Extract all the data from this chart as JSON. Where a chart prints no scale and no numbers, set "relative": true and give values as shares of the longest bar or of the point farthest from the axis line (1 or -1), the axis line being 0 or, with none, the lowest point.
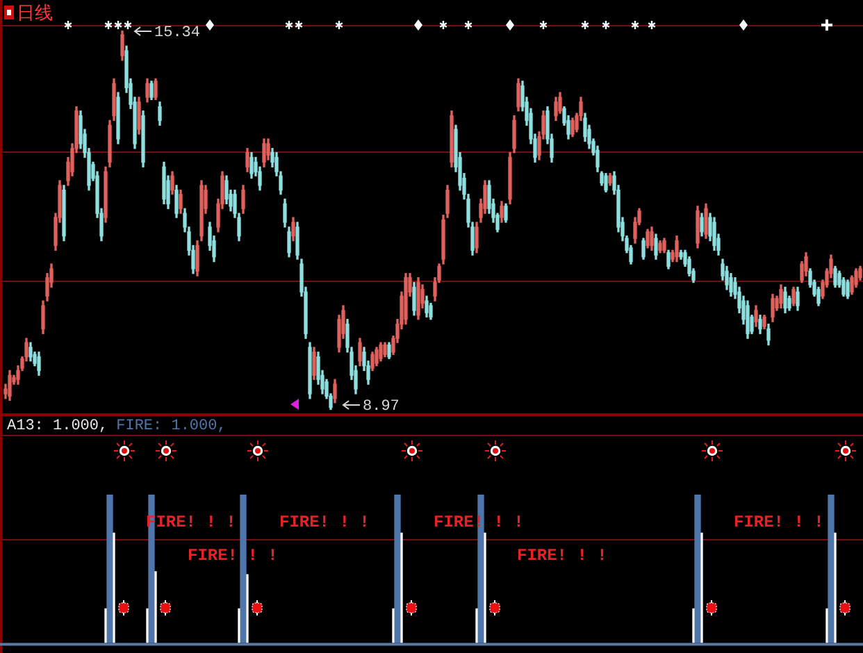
{
  "chart_data": [
    {
      "type": "candlestick",
      "title": "日线",
      "categories": [
        null,
        null,
        null,
        null,
        null,
        null,
        null,
        null,
        null,
        null,
        null,
        null,
        null,
        null,
        null,
        null,
        null,
        null,
        null,
        null,
        null,
        null,
        null,
        null,
        null,
        null,
        null,
        null,
        null,
        null,
        null,
        null,
        null,
        null,
        null,
        null,
        null,
        null,
        null,
        null,
        null,
        null,
        null,
        null,
        null,
        null,
        null,
        null,
        null,
        null,
        null,
        null,
        null,
        null,
        null,
        null,
        null,
        null,
        null,
        null,
        null,
        null,
        null,
        null,
        null,
        null,
        null,
        null,
        null,
        null,
        null,
        null,
        null,
        null,
        null,
        null,
        null,
        null,
        null,
        null,
        null,
        null,
        null,
        null,
        null,
        null,
        null,
        null,
        null,
        null,
        null,
        null,
        null,
        null,
        null,
        null,
        null,
        null,
        null,
        null,
        null,
        null,
        null,
        null,
        null,
        null,
        null,
        null,
        null,
        null,
        null,
        null,
        null,
        null,
        null,
        null,
        null,
        null,
        null,
        null,
        null,
        null,
        null,
        null,
        null,
        null,
        null,
        null,
        null,
        null,
        null,
        null,
        null,
        null,
        null,
        null,
        null,
        null,
        null,
        null,
        null,
        null,
        null,
        null,
        null,
        null,
        null,
        null,
        null,
        null,
        null,
        null,
        null,
        null,
        null,
        null,
        null,
        null,
        null,
        null,
        null,
        null,
        null,
        null,
        null,
        null,
        null,
        null,
        null,
        null,
        null,
        null,
        null,
        null,
        null,
        null,
        null,
        null,
        null,
        null,
        null,
        null,
        null,
        null,
        null,
        null,
        null,
        null,
        null,
        null,
        null,
        null,
        null,
        null,
        null,
        null,
        null,
        null,
        null,
        null,
        null,
        null,
        null,
        null,
        null,
        null
      ],
      "ohlc": [
        [
          9.24,
          9.4,
          9.16,
          9.32
        ],
        [
          9.2,
          9.63,
          9.13,
          9.55
        ],
        [
          9.44,
          9.55,
          9.4,
          9.51
        ],
        [
          9.48,
          9.71,
          9.4,
          9.63
        ],
        [
          9.67,
          9.86,
          9.63,
          9.83
        ],
        [
          9.86,
          10.17,
          9.79,
          10.1
        ],
        [
          10.02,
          10.1,
          9.79,
          9.86
        ],
        [
          9.9,
          9.94,
          9.71,
          9.75
        ],
        [
          9.86,
          9.94,
          9.55,
          9.63
        ],
        [
          10.33,
          10.8,
          10.25,
          10.72
        ],
        [
          10.88,
          11.26,
          10.8,
          11.19
        ],
        [
          11.11,
          11.42,
          11.03,
          11.34
        ],
        [
          11.73,
          12.27,
          11.65,
          12.2
        ],
        [
          12.2,
          12.82,
          12.12,
          12.74
        ],
        [
          12.66,
          12.74,
          11.81,
          11.89
        ],
        [
          12.82,
          13.21,
          12.74,
          13.13
        ],
        [
          12.97,
          13.44,
          12.9,
          13.36
        ],
        [
          13.36,
          14.06,
          13.29,
          13.99
        ],
        [
          13.91,
          13.99,
          13.36,
          13.44
        ],
        [
          13.6,
          13.68,
          13.21,
          13.29
        ],
        [
          13.29,
          13.36,
          12.66,
          12.74
        ],
        [
          13.09,
          13.13,
          12.82,
          12.86
        ],
        [
          12.9,
          12.97,
          12.2,
          12.27
        ],
        [
          12.27,
          12.35,
          11.81,
          11.89
        ],
        [
          12.2,
          13.05,
          12.12,
          12.97
        ],
        [
          13.13,
          13.83,
          13.05,
          13.75
        ],
        [
          13.91,
          14.53,
          13.83,
          14.45
        ],
        [
          14.22,
          14.3,
          13.44,
          13.52
        ],
        [
          14.92,
          15.34,
          14.84,
          15.27
        ],
        [
          15.0,
          15.08,
          14.3,
          14.38
        ],
        [
          14.45,
          14.53,
          14.03,
          14.1
        ],
        [
          14.14,
          14.22,
          13.36,
          13.44
        ],
        [
          13.68,
          14.22,
          13.6,
          14.14
        ],
        [
          13.91,
          13.99,
          13.05,
          13.13
        ],
        [
          14.22,
          14.53,
          14.14,
          14.45
        ],
        [
          14.45,
          14.49,
          14.18,
          14.22
        ],
        [
          14.22,
          14.53,
          14.18,
          14.49
        ],
        [
          14.06,
          14.14,
          13.75,
          13.83
        ],
        [
          13.05,
          13.13,
          12.43,
          12.51
        ],
        [
          12.82,
          12.9,
          12.35,
          12.43
        ],
        [
          12.66,
          12.97,
          12.59,
          12.9
        ],
        [
          12.66,
          12.74,
          12.2,
          12.27
        ],
        [
          12.35,
          12.66,
          12.27,
          12.59
        ],
        [
          12.27,
          12.35,
          11.96,
          12.04
        ],
        [
          11.96,
          12.04,
          11.57,
          11.65
        ],
        [
          11.65,
          11.73,
          11.26,
          11.34
        ],
        [
          11.3,
          11.81,
          11.22,
          11.73
        ],
        [
          11.89,
          12.82,
          11.81,
          12.74
        ],
        [
          12.35,
          12.74,
          12.27,
          12.66
        ],
        [
          12.04,
          12.12,
          11.65,
          11.73
        ],
        [
          11.81,
          11.89,
          11.46,
          11.54
        ],
        [
          12.04,
          12.51,
          11.96,
          12.43
        ],
        [
          12.43,
          12.97,
          12.35,
          12.9
        ],
        [
          12.82,
          12.9,
          12.43,
          12.51
        ],
        [
          12.59,
          12.66,
          12.31,
          12.39
        ],
        [
          12.59,
          12.66,
          12.2,
          12.27
        ],
        [
          12.2,
          12.27,
          11.81,
          11.89
        ],
        [
          12.35,
          12.74,
          12.27,
          12.66
        ],
        [
          13.05,
          13.36,
          12.97,
          13.29
        ],
        [
          13.21,
          13.29,
          12.86,
          12.94
        ],
        [
          13.13,
          13.21,
          12.9,
          12.97
        ],
        [
          12.97,
          13.05,
          12.66,
          12.74
        ],
        [
          13.13,
          13.52,
          13.05,
          13.44
        ],
        [
          13.25,
          13.52,
          13.17,
          13.44
        ],
        [
          13.29,
          13.36,
          13.05,
          13.13
        ],
        [
          13.21,
          13.29,
          12.9,
          12.97
        ],
        [
          12.9,
          12.97,
          12.59,
          12.66
        ],
        [
          12.43,
          12.51,
          12.04,
          12.12
        ],
        [
          11.96,
          12.04,
          11.54,
          11.61
        ],
        [
          11.89,
          12.2,
          11.81,
          12.12
        ],
        [
          12.04,
          12.12,
          11.5,
          11.57
        ],
        [
          11.42,
          11.5,
          10.88,
          10.95
        ],
        [
          10.95,
          11.03,
          10.17,
          10.25
        ],
        [
          10.02,
          10.1,
          9.16,
          9.24
        ],
        [
          9.55,
          10.02,
          9.48,
          9.94
        ],
        [
          9.86,
          9.94,
          9.4,
          9.48
        ],
        [
          9.55,
          9.63,
          9.24,
          9.32
        ],
        [
          9.44,
          9.48,
          9.16,
          9.2
        ],
        [
          9.2,
          9.24,
          8.97,
          9.01
        ],
        [
          9.16,
          9.48,
          9.09,
          9.4
        ],
        [
          10.02,
          10.56,
          9.94,
          10.49
        ],
        [
          10.25,
          10.72,
          10.17,
          10.64
        ],
        [
          10.41,
          10.49,
          9.94,
          10.02
        ],
        [
          9.94,
          10.02,
          9.48,
          9.55
        ],
        [
          9.63,
          9.71,
          9.24,
          9.32
        ],
        [
          9.79,
          10.17,
          9.71,
          10.1
        ],
        [
          9.94,
          10.02,
          9.63,
          9.71
        ],
        [
          9.71,
          9.79,
          9.4,
          9.48
        ],
        [
          9.67,
          9.94,
          9.63,
          9.9
        ],
        [
          9.75,
          10.02,
          9.71,
          9.98
        ],
        [
          9.83,
          10.1,
          9.79,
          10.06
        ],
        [
          9.9,
          10.1,
          9.86,
          10.06
        ],
        [
          10.06,
          10.1,
          9.83,
          9.86
        ],
        [
          9.94,
          10.21,
          9.9,
          10.17
        ],
        [
          10.17,
          10.49,
          10.1,
          10.41
        ],
        [
          10.41,
          10.95,
          10.33,
          10.88
        ],
        [
          10.49,
          11.26,
          10.41,
          11.19
        ],
        [
          10.95,
          11.26,
          10.88,
          11.19
        ],
        [
          11.03,
          11.11,
          10.56,
          10.64
        ],
        [
          10.56,
          11.19,
          10.49,
          11.11
        ],
        [
          10.76,
          11.07,
          10.68,
          10.99
        ],
        [
          10.8,
          10.88,
          10.53,
          10.6
        ],
        [
          10.72,
          10.76,
          10.49,
          10.53
        ],
        [
          10.88,
          11.19,
          10.8,
          11.11
        ],
        [
          11.15,
          11.42,
          11.11,
          11.38
        ],
        [
          11.5,
          12.24,
          11.42,
          12.16
        ],
        [
          12.27,
          12.74,
          12.2,
          12.66
        ],
        [
          13.13,
          13.99,
          13.05,
          13.91
        ],
        [
          13.68,
          13.75,
          12.97,
          13.05
        ],
        [
          13.21,
          13.29,
          12.66,
          12.74
        ],
        [
          12.86,
          12.94,
          12.51,
          12.59
        ],
        [
          12.51,
          12.59,
          12.04,
          12.12
        ],
        [
          12.04,
          12.12,
          11.57,
          11.65
        ],
        [
          11.69,
          12.12,
          11.61,
          12.04
        ],
        [
          12.2,
          12.51,
          12.12,
          12.43
        ],
        [
          12.35,
          12.82,
          12.27,
          12.74
        ],
        [
          12.74,
          12.82,
          12.27,
          12.35
        ],
        [
          12.43,
          12.51,
          12.12,
          12.2
        ],
        [
          12.24,
          12.27,
          11.96,
          12.0
        ],
        [
          12.2,
          12.47,
          12.12,
          12.39
        ],
        [
          12.39,
          12.43,
          12.12,
          12.16
        ],
        [
          12.51,
          13.29,
          12.43,
          13.21
        ],
        [
          13.36,
          13.91,
          13.29,
          13.83
        ],
        [
          14.06,
          14.53,
          13.99,
          14.45
        ],
        [
          14.41,
          14.49,
          13.99,
          14.06
        ],
        [
          14.14,
          14.22,
          13.75,
          13.83
        ],
        [
          13.95,
          14.03,
          13.44,
          13.52
        ],
        [
          13.52,
          13.6,
          13.13,
          13.21
        ],
        [
          13.25,
          13.64,
          13.17,
          13.56
        ],
        [
          13.6,
          13.99,
          13.52,
          13.91
        ],
        [
          13.99,
          14.06,
          13.44,
          13.52
        ],
        [
          13.52,
          13.6,
          13.13,
          13.21
        ],
        [
          13.91,
          14.22,
          13.83,
          14.14
        ],
        [
          13.99,
          14.3,
          13.95,
          14.22
        ],
        [
          14.03,
          14.06,
          13.75,
          13.79
        ],
        [
          13.83,
          13.91,
          13.52,
          13.6
        ],
        [
          13.6,
          13.87,
          13.56,
          13.83
        ],
        [
          13.68,
          13.95,
          13.64,
          13.91
        ],
        [
          13.91,
          14.22,
          13.83,
          14.14
        ],
        [
          13.87,
          13.95,
          13.48,
          13.56
        ],
        [
          13.68,
          13.75,
          13.36,
          13.44
        ],
        [
          13.48,
          13.52,
          13.25,
          13.29
        ],
        [
          13.33,
          13.4,
          12.97,
          13.05
        ],
        [
          12.94,
          12.97,
          12.74,
          12.78
        ],
        [
          12.9,
          12.94,
          12.63,
          12.66
        ],
        [
          12.78,
          12.94,
          12.74,
          12.9
        ],
        [
          12.9,
          12.97,
          12.59,
          12.66
        ],
        [
          12.66,
          12.74,
          11.96,
          12.04
        ],
        [
          12.12,
          12.2,
          11.81,
          11.89
        ],
        [
          11.85,
          11.89,
          11.61,
          11.65
        ],
        [
          11.69,
          11.73,
          11.42,
          11.46
        ],
        [
          11.85,
          12.2,
          11.77,
          12.12
        ],
        [
          12.12,
          12.35,
          12.08,
          12.31
        ],
        [
          11.81,
          11.85,
          11.5,
          11.54
        ],
        [
          11.73,
          12.0,
          11.69,
          11.96
        ],
        [
          11.73,
          12.04,
          11.65,
          11.96
        ],
        [
          11.85,
          11.92,
          11.5,
          11.57
        ],
        [
          11.65,
          11.81,
          11.61,
          11.77
        ],
        [
          11.65,
          11.85,
          11.61,
          11.81
        ],
        [
          11.61,
          11.65,
          11.34,
          11.38
        ],
        [
          11.5,
          11.65,
          11.46,
          11.61
        ],
        [
          11.54,
          11.89,
          11.46,
          11.81
        ],
        [
          11.61,
          11.65,
          11.5,
          11.54
        ],
        [
          11.61,
          11.65,
          11.38,
          11.42
        ],
        [
          11.5,
          11.54,
          11.22,
          11.26
        ],
        [
          11.3,
          11.34,
          11.11,
          11.15
        ],
        [
          11.77,
          12.39,
          11.69,
          12.31
        ],
        [
          12.2,
          12.27,
          11.89,
          11.96
        ],
        [
          11.92,
          12.43,
          11.85,
          12.35
        ],
        [
          12.2,
          12.27,
          11.81,
          11.89
        ],
        [
          12.12,
          12.2,
          11.65,
          11.73
        ],
        [
          11.85,
          11.92,
          11.57,
          11.65
        ],
        [
          11.42,
          11.5,
          11.15,
          11.22
        ],
        [
          11.3,
          11.38,
          10.99,
          11.07
        ],
        [
          11.19,
          11.26,
          10.88,
          10.95
        ],
        [
          11.11,
          11.19,
          10.84,
          10.91
        ],
        [
          10.95,
          11.03,
          10.6,
          10.68
        ],
        [
          10.8,
          10.88,
          10.41,
          10.49
        ],
        [
          10.72,
          10.8,
          10.17,
          10.25
        ],
        [
          10.53,
          10.56,
          10.25,
          10.29
        ],
        [
          10.45,
          10.72,
          10.37,
          10.64
        ],
        [
          10.49,
          10.56,
          10.25,
          10.33
        ],
        [
          10.37,
          10.56,
          10.33,
          10.53
        ],
        [
          10.33,
          10.41,
          10.06,
          10.14
        ],
        [
          10.53,
          10.91,
          10.45,
          10.84
        ],
        [
          10.68,
          10.88,
          10.64,
          10.84
        ],
        [
          10.76,
          11.07,
          10.68,
          10.99
        ],
        [
          10.95,
          11.03,
          10.6,
          10.68
        ],
        [
          10.84,
          10.88,
          10.64,
          10.68
        ],
        [
          10.76,
          11.03,
          10.72,
          10.99
        ],
        [
          10.95,
          11.03,
          10.64,
          10.72
        ],
        [
          11.15,
          11.46,
          11.11,
          11.42
        ],
        [
          11.3,
          11.61,
          11.22,
          11.54
        ],
        [
          11.3,
          11.34,
          11.03,
          11.07
        ],
        [
          11.11,
          11.15,
          10.88,
          10.91
        ],
        [
          10.99,
          11.03,
          10.72,
          10.76
        ],
        [
          10.88,
          11.15,
          10.84,
          11.11
        ],
        [
          11.07,
          11.34,
          11.03,
          11.3
        ],
        [
          11.26,
          11.57,
          11.19,
          11.5
        ],
        [
          11.34,
          11.38,
          11.03,
          11.07
        ],
        [
          11.26,
          11.3,
          11.03,
          11.07
        ],
        [
          11.15,
          11.19,
          10.88,
          10.91
        ],
        [
          11.11,
          11.15,
          10.84,
          10.88
        ],
        [
          10.95,
          11.22,
          10.91,
          11.19
        ],
        [
          11.07,
          11.34,
          11.03,
          11.3
        ],
        [
          11.19,
          11.38,
          11.15,
          11.34
        ]
      ],
      "colors": [
        "#e0605c",
        "#e0605c",
        "#e0605c",
        "#e0605c",
        "#e0605c",
        "#e0605c",
        "#8ee0e0",
        "#8ee0e0",
        "#8ee0e0",
        "#e0605c",
        "#e0605c",
        "#e0605c",
        "#e0605c",
        "#e0605c",
        "#8ee0e0",
        "#e0605c",
        "#e0605c",
        "#e0605c",
        "#8ee0e0",
        "#8ee0e0",
        "#8ee0e0",
        "#8ee0e0",
        "#8ee0e0",
        "#8ee0e0",
        "#e0605c",
        "#e0605c",
        "#e0605c",
        "#8ee0e0",
        "#e0605c",
        "#8ee0e0",
        "#8ee0e0",
        "#8ee0e0",
        "#e0605c",
        "#8ee0e0",
        "#e0605c",
        "#8ee0e0",
        "#e0605c",
        "#8ee0e0",
        "#8ee0e0",
        "#8ee0e0",
        "#e0605c",
        "#8ee0e0",
        "#e0605c",
        "#8ee0e0",
        "#8ee0e0",
        "#8ee0e0",
        "#e0605c",
        "#e0605c",
        "#e0605c",
        "#8ee0e0",
        "#8ee0e0",
        "#e0605c",
        "#e0605c",
        "#8ee0e0",
        "#8ee0e0",
        "#8ee0e0",
        "#8ee0e0",
        "#e0605c",
        "#e0605c",
        "#8ee0e0",
        "#8ee0e0",
        "#8ee0e0",
        "#e0605c",
        "#e0605c",
        "#8ee0e0",
        "#8ee0e0",
        "#8ee0e0",
        "#8ee0e0",
        "#8ee0e0",
        "#e0605c",
        "#8ee0e0",
        "#8ee0e0",
        "#8ee0e0",
        "#8ee0e0",
        "#e0605c",
        "#8ee0e0",
        "#8ee0e0",
        "#8ee0e0",
        "#8ee0e0",
        "#e0605c",
        "#e0605c",
        "#e0605c",
        "#8ee0e0",
        "#8ee0e0",
        "#8ee0e0",
        "#e0605c",
        "#8ee0e0",
        "#8ee0e0",
        "#e0605c",
        "#e0605c",
        "#e0605c",
        "#e0605c",
        "#8ee0e0",
        "#e0605c",
        "#e0605c",
        "#e0605c",
        "#e0605c",
        "#e0605c",
        "#8ee0e0",
        "#e0605c",
        "#e0605c",
        "#8ee0e0",
        "#8ee0e0",
        "#e0605c",
        "#e0605c",
        "#e0605c",
        "#e0605c",
        "#e0605c",
        "#8ee0e0",
        "#8ee0e0",
        "#8ee0e0",
        "#8ee0e0",
        "#8ee0e0",
        "#e0605c",
        "#e0605c",
        "#e0605c",
        "#8ee0e0",
        "#8ee0e0",
        "#8ee0e0",
        "#e0605c",
        "#8ee0e0",
        "#e0605c",
        "#e0605c",
        "#e0605c",
        "#8ee0e0",
        "#8ee0e0",
        "#8ee0e0",
        "#8ee0e0",
        "#e0605c",
        "#e0605c",
        "#8ee0e0",
        "#8ee0e0",
        "#e0605c",
        "#e0605c",
        "#8ee0e0",
        "#8ee0e0",
        "#e0605c",
        "#e0605c",
        "#e0605c",
        "#8ee0e0",
        "#8ee0e0",
        "#8ee0e0",
        "#8ee0e0",
        "#8ee0e0",
        "#8ee0e0",
        "#e0605c",
        "#8ee0e0",
        "#8ee0e0",
        "#8ee0e0",
        "#8ee0e0",
        "#8ee0e0",
        "#e0605c",
        "#e0605c",
        "#8ee0e0",
        "#e0605c",
        "#e0605c",
        "#8ee0e0",
        "#e0605c",
        "#e0605c",
        "#8ee0e0",
        "#e0605c",
        "#e0605c",
        "#8ee0e0",
        "#8ee0e0",
        "#8ee0e0",
        "#8ee0e0",
        "#e0605c",
        "#8ee0e0",
        "#e0605c",
        "#8ee0e0",
        "#8ee0e0",
        "#8ee0e0",
        "#8ee0e0",
        "#8ee0e0",
        "#8ee0e0",
        "#8ee0e0",
        "#8ee0e0",
        "#8ee0e0",
        "#8ee0e0",
        "#8ee0e0",
        "#e0605c",
        "#8ee0e0",
        "#e0605c",
        "#8ee0e0",
        "#e0605c",
        "#e0605c",
        "#e0605c",
        "#8ee0e0",
        "#8ee0e0",
        "#e0605c",
        "#8ee0e0",
        "#e0605c",
        "#e0605c",
        "#8ee0e0",
        "#8ee0e0",
        "#8ee0e0",
        "#e0605c",
        "#e0605c",
        "#e0605c",
        "#8ee0e0",
        "#8ee0e0",
        "#8ee0e0",
        "#8ee0e0",
        "#e0605c",
        "#e0605c",
        "#e0605c"
      ],
      "yticks": [
        {
          "value": 13.3,
          "label": null
        },
        {
          "value": 11.15,
          "label": null
        }
      ],
      "annotations": [
        "15.34",
        "8.97"
      ],
      "grid": "y",
      "tick_labels": false
    },
    {
      "type": "bar",
      "relative": true,
      "categories": [
        null,
        null,
        null,
        null,
        null,
        null,
        null,
        null,
        null,
        null,
        null,
        null,
        null,
        null,
        null,
        null,
        null,
        null,
        null,
        null,
        null,
        null,
        null,
        null,
        null,
        null,
        null,
        null,
        null,
        null,
        null,
        null,
        null,
        null,
        null,
        null,
        null,
        null,
        null,
        null,
        null,
        null,
        null,
        null,
        null,
        null,
        null,
        null,
        null,
        null,
        null,
        null,
        null,
        null,
        null,
        null,
        null,
        null,
        null,
        null,
        null,
        null,
        null,
        null,
        null,
        null,
        null,
        null,
        null,
        null,
        null,
        null,
        null,
        null,
        null,
        null,
        null,
        null,
        null,
        null,
        null,
        null,
        null,
        null,
        null,
        null,
        null,
        null,
        null,
        null,
        null,
        null,
        null,
        null,
        null,
        null,
        null,
        null,
        null,
        null,
        null,
        null,
        null,
        null,
        null,
        null,
        null,
        null,
        null,
        null,
        null,
        null,
        null,
        null,
        null,
        null,
        null,
        null,
        null,
        null,
        null,
        null,
        null,
        null,
        null,
        null,
        null,
        null,
        null,
        null,
        null,
        null,
        null,
        null,
        null,
        null,
        null,
        null,
        null,
        null,
        null,
        null,
        null,
        null,
        null,
        null,
        null,
        null,
        null,
        null,
        null,
        null,
        null,
        null,
        null,
        null,
        null,
        null,
        null,
        null,
        null,
        null,
        null,
        null,
        null,
        null,
        null,
        null,
        null,
        null,
        null,
        null,
        null,
        null,
        null,
        null,
        null,
        null,
        null,
        null,
        null,
        null,
        null,
        null,
        null,
        null,
        null,
        null,
        null,
        null,
        null,
        null,
        null,
        null,
        null,
        null,
        null,
        null,
        null,
        null,
        null,
        null,
        null,
        null,
        null,
        null
      ],
      "series": [
        {
          "color": "#4f76ab",
          "values": [
            null,
            null,
            null,
            null,
            null,
            null,
            null,
            null,
            null,
            null,
            null,
            null,
            null,
            null,
            null,
            null,
            null,
            null,
            null,
            null,
            null,
            null,
            null,
            null,
            null,
            1,
            null,
            null,
            null,
            null,
            null,
            null,
            null,
            null,
            null,
            1,
            null,
            null,
            null,
            null,
            null,
            null,
            null,
            null,
            null,
            null,
            null,
            null,
            null,
            null,
            null,
            null,
            null,
            null,
            null,
            null,
            null,
            1,
            null,
            null,
            null,
            null,
            null,
            null,
            null,
            null,
            null,
            null,
            null,
            null,
            null,
            null,
            null,
            null,
            null,
            null,
            null,
            null,
            null,
            null,
            null,
            null,
            null,
            null,
            null,
            null,
            null,
            null,
            null,
            null,
            null,
            null,
            null,
            null,
            1,
            null,
            null,
            null,
            null,
            null,
            null,
            null,
            null,
            null,
            null,
            null,
            null,
            null,
            null,
            null,
            null,
            null,
            null,
            null,
            1,
            null,
            null,
            null,
            null,
            null,
            null,
            null,
            null,
            null,
            null,
            null,
            null,
            null,
            null,
            null,
            null,
            null,
            null,
            null,
            null,
            null,
            null,
            null,
            null,
            null,
            null,
            null,
            null,
            null,
            null,
            null,
            null,
            null,
            null,
            null,
            null,
            null,
            null,
            null,
            null,
            null,
            null,
            null,
            null,
            null,
            null,
            null,
            null,
            null,
            null,
            null,
            1,
            null,
            null,
            null,
            null,
            null,
            null,
            null,
            null,
            null,
            null,
            null,
            null,
            null,
            null,
            null,
            null,
            null,
            null,
            null,
            null,
            null,
            null,
            null,
            null,
            null,
            null,
            null,
            null,
            null,
            null,
            null,
            1,
            null,
            null,
            null,
            null,
            null,
            null,
            null
          ]
        },
        {
          "color": "#ffffff",
          "values": [
            null,
            null,
            null,
            null,
            null,
            null,
            null,
            null,
            null,
            null,
            null,
            null,
            null,
            null,
            null,
            null,
            null,
            null,
            null,
            null,
            null,
            null,
            null,
            null,
            null,
            null,
            0.74,
            null,
            null,
            null,
            null,
            null,
            null,
            null,
            null,
            null,
            0.48,
            null,
            null,
            null,
            null,
            null,
            null,
            null,
            null,
            null,
            null,
            null,
            null,
            null,
            null,
            null,
            null,
            null,
            null,
            null,
            null,
            null,
            0.46,
            null,
            null,
            null,
            null,
            null,
            null,
            null,
            null,
            null,
            null,
            null,
            null,
            null,
            null,
            null,
            null,
            null,
            null,
            null,
            null,
            null,
            null,
            null,
            null,
            null,
            null,
            null,
            null,
            null,
            null,
            null,
            null,
            null,
            null,
            null,
            null,
            0.74,
            null,
            null,
            null,
            null,
            null,
            null,
            null,
            null,
            null,
            null,
            null,
            null,
            null,
            null,
            null,
            null,
            null,
            null,
            null,
            0.74,
            null,
            null,
            null,
            null,
            null,
            null,
            null,
            null,
            null,
            null,
            null,
            null,
            null,
            null,
            null,
            null,
            null,
            null,
            null,
            null,
            null,
            null,
            null,
            null,
            null,
            null,
            null,
            null,
            null,
            null,
            null,
            null,
            null,
            null,
            null,
            null,
            null,
            null,
            null,
            null,
            null,
            null,
            null,
            null,
            null,
            null,
            null,
            null,
            null,
            null,
            null,
            0.74,
            null,
            null,
            null,
            null,
            null,
            null,
            null,
            null,
            null,
            null,
            null,
            null,
            null,
            null,
            null,
            null,
            null,
            null,
            null,
            null,
            null,
            null,
            null,
            null,
            null,
            null,
            null,
            null,
            null,
            null,
            null,
            0.74,
            null,
            null,
            null,
            null,
            null,
            null
          ]
        },
        {
          "color": "#ffffff",
          "values": [
            null,
            null,
            null,
            null,
            null,
            null,
            null,
            null,
            null,
            null,
            null,
            null,
            null,
            null,
            null,
            null,
            null,
            null,
            null,
            null,
            null,
            null,
            null,
            null,
            0.23,
            null,
            null,
            null,
            null,
            null,
            null,
            null,
            null,
            null,
            0.23,
            null,
            null,
            null,
            null,
            null,
            null,
            null,
            null,
            null,
            null,
            null,
            null,
            null,
            null,
            null,
            null,
            null,
            null,
            null,
            null,
            null,
            0.23,
            null,
            null,
            null,
            null,
            null,
            null,
            null,
            null,
            null,
            null,
            null,
            null,
            null,
            null,
            null,
            null,
            null,
            null,
            null,
            null,
            null,
            null,
            null,
            null,
            null,
            null,
            null,
            null,
            null,
            null,
            null,
            null,
            null,
            null,
            null,
            null,
            0.23,
            null,
            null,
            null,
            null,
            null,
            null,
            null,
            null,
            null,
            null,
            null,
            null,
            null,
            null,
            null,
            null,
            null,
            null,
            null,
            0.23,
            null,
            null,
            null,
            null,
            null,
            null,
            null,
            null,
            null,
            null,
            null,
            null,
            null,
            null,
            null,
            null,
            null,
            null,
            null,
            null,
            null,
            null,
            null,
            null,
            null,
            null,
            null,
            null,
            null,
            null,
            null,
            null,
            null,
            null,
            null,
            null,
            null,
            null,
            null,
            null,
            null,
            null,
            null,
            null,
            null,
            null,
            null,
            null,
            null,
            null,
            null,
            0.23,
            null,
            null,
            null,
            null,
            null,
            null,
            null,
            null,
            null,
            null,
            null,
            null,
            null,
            null,
            null,
            null,
            null,
            null,
            null,
            null,
            null,
            null,
            null,
            null,
            null,
            null,
            null,
            null,
            null,
            null,
            null,
            0.23,
            null,
            null,
            null,
            null,
            null,
            null,
            null,
            null
          ]
        }
      ],
      "ref_lines": [
        {
          "axis": "y",
          "value": 0.7,
          "color": "#701010"
        }
      ],
      "annotations": [
        "A13: 1.000,",
        "FIRE: 1.000,",
        "FIRE! ! !",
        "FIRE! ! !",
        "FIRE! ! !",
        "FIRE! ! !",
        "FIRE! ! !",
        "FIRE! ! !"
      ],
      "tick_labels": false
    }
  ]
}
